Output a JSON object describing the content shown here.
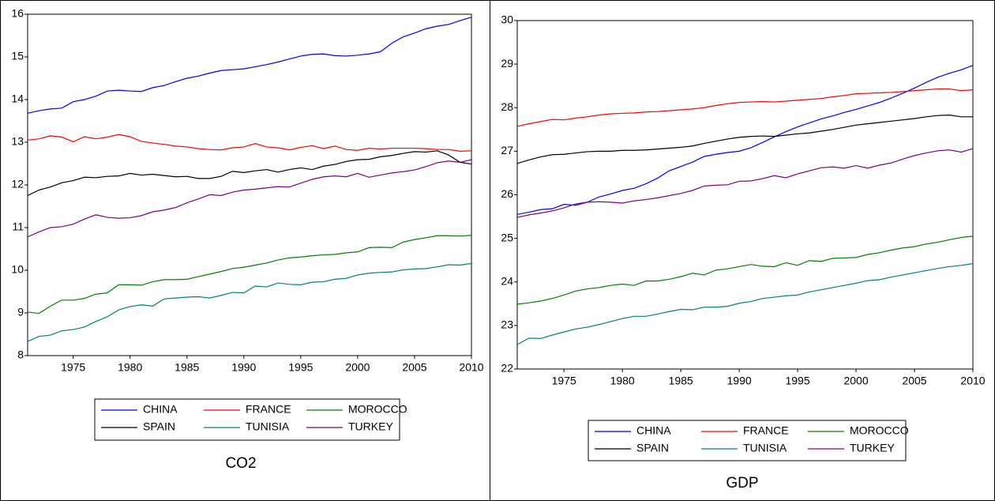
{
  "chart_data": [
    {
      "type": "line",
      "title": "CO2",
      "x": [
        1971,
        1972,
        1973,
        1974,
        1975,
        1976,
        1977,
        1978,
        1979,
        1980,
        1981,
        1982,
        1983,
        1984,
        1985,
        1986,
        1987,
        1988,
        1989,
        1990,
        1991,
        1992,
        1993,
        1994,
        1995,
        1996,
        1997,
        1998,
        1999,
        2000,
        2001,
        2002,
        2003,
        2004,
        2005,
        2006,
        2007,
        2008,
        2009,
        2010
      ],
      "xlim": [
        1971,
        2010
      ],
      "xticks": [
        1975,
        1980,
        1985,
        1990,
        1995,
        2000,
        2005,
        2010
      ],
      "ylim": [
        8,
        16
      ],
      "yticks": [
        8,
        9,
        10,
        11,
        12,
        13,
        14,
        15,
        16
      ],
      "series": [
        {
          "name": "CHINA",
          "color": "#0000ff",
          "values": [
            13.68,
            13.74,
            13.78,
            13.8,
            13.95,
            14.0,
            14.08,
            14.2,
            14.22,
            14.2,
            14.19,
            14.28,
            14.33,
            14.42,
            14.5,
            14.55,
            14.62,
            14.68,
            14.7,
            14.72,
            14.77,
            14.82,
            14.88,
            14.95,
            15.02,
            15.06,
            15.07,
            15.03,
            15.02,
            15.04,
            15.07,
            15.12,
            15.32,
            15.47,
            15.56,
            15.66,
            15.72,
            15.76,
            15.85,
            15.93
          ]
        },
        {
          "name": "FRANCE",
          "color": "#ff0000",
          "values": [
            13.05,
            13.08,
            13.15,
            13.12,
            13.01,
            13.13,
            13.08,
            13.12,
            13.18,
            13.13,
            13.02,
            12.98,
            12.95,
            12.91,
            12.89,
            12.85,
            12.83,
            12.82,
            12.87,
            12.89,
            12.97,
            12.89,
            12.87,
            12.82,
            12.88,
            12.92,
            12.85,
            12.91,
            12.83,
            12.81,
            12.86,
            12.84,
            12.86,
            12.86,
            12.86,
            12.85,
            12.83,
            12.83,
            12.79,
            12.8
          ]
        },
        {
          "name": "MOROCCO",
          "color": "#008000",
          "values": [
            9.02,
            8.99,
            9.16,
            9.3,
            9.3,
            9.34,
            9.44,
            9.47,
            9.66,
            9.66,
            9.65,
            9.73,
            9.78,
            9.78,
            9.79,
            9.85,
            9.91,
            9.97,
            10.04,
            10.07,
            10.12,
            10.17,
            10.24,
            10.29,
            10.31,
            10.34,
            10.36,
            10.37,
            10.41,
            10.43,
            10.53,
            10.54,
            10.53,
            10.66,
            10.72,
            10.76,
            10.81,
            10.81,
            10.8,
            10.82
          ]
        },
        {
          "name": "SPAIN",
          "color": "#000000",
          "values": [
            11.75,
            11.88,
            11.95,
            12.05,
            12.1,
            12.18,
            12.17,
            12.2,
            12.21,
            12.27,
            12.23,
            12.25,
            12.22,
            12.19,
            12.2,
            12.15,
            12.15,
            12.2,
            12.32,
            12.29,
            12.33,
            12.36,
            12.3,
            12.36,
            12.4,
            12.36,
            12.44,
            12.48,
            12.55,
            12.59,
            12.6,
            12.66,
            12.69,
            12.74,
            12.78,
            12.77,
            12.8,
            12.7,
            12.53,
            12.49
          ]
        },
        {
          "name": "TUNISIA",
          "color": "#008080",
          "values": [
            8.33,
            8.45,
            8.48,
            8.58,
            8.61,
            8.67,
            8.8,
            8.91,
            9.07,
            9.15,
            9.19,
            9.16,
            9.33,
            9.35,
            9.37,
            9.38,
            9.35,
            9.41,
            9.48,
            9.47,
            9.63,
            9.61,
            9.7,
            9.67,
            9.66,
            9.72,
            9.73,
            9.79,
            9.81,
            9.89,
            9.93,
            9.95,
            9.96,
            10.01,
            10.03,
            10.04,
            10.08,
            10.13,
            10.12,
            10.16
          ]
        },
        {
          "name": "TURKEY",
          "color": "#800080",
          "values": [
            10.78,
            10.9,
            11.0,
            11.02,
            11.08,
            11.2,
            11.3,
            11.24,
            11.22,
            11.23,
            11.28,
            11.37,
            11.41,
            11.47,
            11.58,
            11.67,
            11.77,
            11.75,
            11.83,
            11.88,
            11.9,
            11.93,
            11.96,
            11.95,
            12.04,
            12.13,
            12.19,
            12.21,
            12.19,
            12.27,
            12.18,
            12.23,
            12.28,
            12.31,
            12.35,
            12.43,
            12.52,
            12.56,
            12.53,
            12.59
          ]
        }
      ]
    },
    {
      "type": "line",
      "title": "GDP",
      "x": [
        1971,
        1972,
        1973,
        1974,
        1975,
        1976,
        1977,
        1978,
        1979,
        1980,
        1981,
        1982,
        1983,
        1984,
        1985,
        1986,
        1987,
        1988,
        1989,
        1990,
        1991,
        1992,
        1993,
        1994,
        1995,
        1996,
        1997,
        1998,
        1999,
        2000,
        2001,
        2002,
        2003,
        2004,
        2005,
        2006,
        2007,
        2008,
        2009,
        2010
      ],
      "xlim": [
        1971,
        2010
      ],
      "xticks": [
        1975,
        1980,
        1985,
        1990,
        1995,
        2000,
        2005,
        2010
      ],
      "ylim": [
        22,
        30
      ],
      "yticks": [
        22,
        23,
        24,
        25,
        26,
        27,
        28,
        29,
        30
      ],
      "series": [
        {
          "name": "CHINA",
          "color": "#0000ff",
          "values": [
            25.55,
            25.6,
            25.66,
            25.68,
            25.78,
            25.76,
            25.83,
            25.95,
            26.02,
            26.1,
            26.15,
            26.25,
            26.38,
            26.55,
            26.65,
            26.75,
            26.88,
            26.93,
            26.97,
            27.0,
            27.08,
            27.2,
            27.33,
            27.45,
            27.56,
            27.65,
            27.74,
            27.81,
            27.89,
            27.96,
            28.04,
            28.12,
            28.22,
            28.33,
            28.45,
            28.58,
            28.7,
            28.79,
            28.87,
            28.97
          ]
        },
        {
          "name": "FRANCE",
          "color": "#ff0000",
          "values": [
            27.57,
            27.63,
            27.68,
            27.73,
            27.72,
            27.76,
            27.79,
            27.83,
            27.86,
            27.87,
            27.88,
            27.9,
            27.91,
            27.93,
            27.95,
            27.97,
            28.0,
            28.05,
            28.09,
            28.12,
            28.13,
            28.14,
            28.13,
            28.15,
            28.17,
            28.19,
            28.21,
            28.25,
            28.28,
            28.32,
            28.33,
            28.34,
            28.35,
            28.37,
            28.39,
            28.41,
            28.43,
            28.43,
            28.39,
            28.41
          ]
        },
        {
          "name": "MOROCCO",
          "color": "#008000",
          "values": [
            23.49,
            23.52,
            23.56,
            23.62,
            23.7,
            23.79,
            23.84,
            23.87,
            23.92,
            23.95,
            23.92,
            24.02,
            24.02,
            24.06,
            24.12,
            24.2,
            24.16,
            24.27,
            24.3,
            24.35,
            24.4,
            24.36,
            24.35,
            24.44,
            24.38,
            24.49,
            24.47,
            24.54,
            24.55,
            24.56,
            24.63,
            24.67,
            24.73,
            24.78,
            24.81,
            24.87,
            24.91,
            24.97,
            25.02,
            25.05
          ]
        },
        {
          "name": "SPAIN",
          "color": "#000000",
          "values": [
            26.72,
            26.8,
            26.87,
            26.92,
            26.93,
            26.96,
            26.99,
            27.0,
            27.0,
            27.02,
            27.02,
            27.03,
            27.05,
            27.07,
            27.09,
            27.12,
            27.18,
            27.23,
            27.28,
            27.32,
            27.34,
            27.35,
            27.34,
            27.37,
            27.4,
            27.42,
            27.46,
            27.5,
            27.55,
            27.6,
            27.63,
            27.66,
            27.69,
            27.72,
            27.75,
            27.79,
            27.82,
            27.83,
            27.79,
            27.79
          ]
        },
        {
          "name": "TUNISIA",
          "color": "#008080",
          "values": [
            22.56,
            22.71,
            22.7,
            22.78,
            22.85,
            22.92,
            22.96,
            23.02,
            23.09,
            23.16,
            23.21,
            23.21,
            23.26,
            23.32,
            23.37,
            23.36,
            23.42,
            23.42,
            23.44,
            23.51,
            23.55,
            23.62,
            23.65,
            23.68,
            23.7,
            23.77,
            23.82,
            23.87,
            23.92,
            23.97,
            24.03,
            24.05,
            24.11,
            24.16,
            24.21,
            24.26,
            24.31,
            24.35,
            24.38,
            24.42
          ]
        },
        {
          "name": "TURKEY",
          "color": "#800080",
          "values": [
            25.48,
            25.54,
            25.58,
            25.63,
            25.7,
            25.79,
            25.83,
            25.84,
            25.83,
            25.81,
            25.86,
            25.89,
            25.93,
            25.98,
            26.03,
            26.1,
            26.2,
            26.22,
            26.23,
            26.31,
            26.32,
            26.37,
            26.44,
            26.39,
            26.48,
            26.55,
            26.62,
            26.64,
            26.61,
            26.67,
            26.61,
            26.68,
            26.73,
            26.82,
            26.9,
            26.96,
            27.01,
            27.03,
            26.98,
            27.06
          ]
        }
      ]
    }
  ]
}
